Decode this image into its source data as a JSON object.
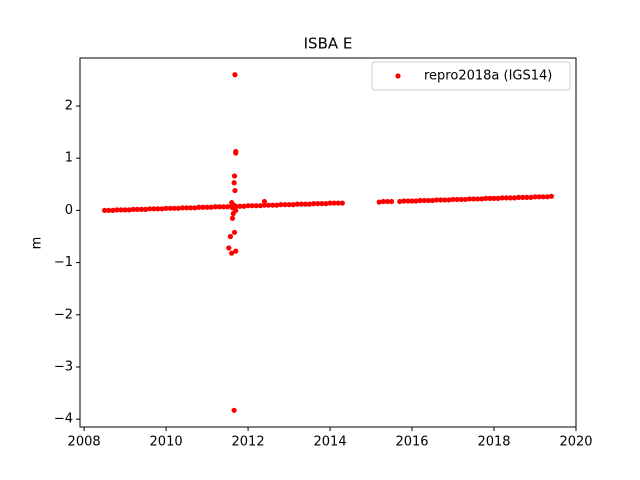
{
  "chart_data": {
    "type": "scatter",
    "title": "ISBA E",
    "y_label": "m",
    "xlim": [
      2007.9,
      2020.0
    ],
    "ylim": [
      -4.15,
      2.92
    ],
    "xticks": [
      2008,
      2010,
      2012,
      2014,
      2016,
      2018,
      2020
    ],
    "yticks": [
      {
        "value": -4,
        "label": "−4"
      },
      {
        "value": -3,
        "label": "−3"
      },
      {
        "value": -2,
        "label": "−2"
      },
      {
        "value": -1,
        "label": "−1"
      },
      0,
      1,
      2
    ],
    "grid": false,
    "legend_position": "upper-right",
    "series": [
      {
        "name": "repro2018a (IGS14)",
        "color": "#ff0000",
        "x": [
          2008.5,
          2008.6,
          2008.7,
          2008.8,
          2008.9,
          2009.0,
          2009.1,
          2009.2,
          2009.3,
          2009.4,
          2009.5,
          2009.6,
          2009.7,
          2009.8,
          2009.9,
          2010.0,
          2010.1,
          2010.2,
          2010.3,
          2010.4,
          2010.5,
          2010.6,
          2010.7,
          2010.8,
          2010.9,
          2011.0,
          2011.1,
          2011.2,
          2011.3,
          2011.4,
          2011.5,
          2011.6,
          2011.7,
          2011.8,
          2011.9,
          2012.0,
          2012.1,
          2012.2,
          2012.3,
          2012.4,
          2012.5,
          2012.6,
          2012.7,
          2012.8,
          2012.9,
          2013.0,
          2013.1,
          2013.2,
          2013.3,
          2013.4,
          2013.5,
          2013.6,
          2013.7,
          2013.8,
          2013.9,
          2014.0,
          2014.1,
          2014.2,
          2014.3,
          2015.2,
          2015.3,
          2015.4,
          2015.5,
          2015.7,
          2015.8,
          2015.9,
          2016.0,
          2016.1,
          2016.2,
          2016.3,
          2016.4,
          2016.5,
          2016.6,
          2016.7,
          2016.8,
          2016.9,
          2017.0,
          2017.1,
          2017.2,
          2017.3,
          2017.4,
          2017.5,
          2017.6,
          2017.7,
          2017.8,
          2017.9,
          2018.0,
          2018.1,
          2018.2,
          2018.3,
          2018.4,
          2018.5,
          2018.6,
          2018.7,
          2018.8,
          2018.9,
          2019.0,
          2019.1,
          2019.2,
          2019.3,
          2019.4,
          2011.68,
          2011.7,
          2011.7,
          2011.67,
          2011.66,
          2011.68,
          2011.6,
          2011.62,
          2011.64,
          2011.67,
          2011.57,
          2011.53,
          2011.6,
          2011.7,
          2011.66,
          2012.4,
          2011.65,
          2011.7,
          2011.62
        ],
        "values": [
          0,
          0,
          0,
          0.01,
          0.01,
          0.01,
          0.01,
          0.02,
          0.02,
          0.02,
          0.02,
          0.03,
          0.03,
          0.03,
          0.03,
          0.04,
          0.04,
          0.04,
          0.04,
          0.05,
          0.05,
          0.05,
          0.05,
          0.06,
          0.06,
          0.06,
          0.06,
          0.07,
          0.07,
          0.07,
          0.07,
          0.08,
          0.08,
          0.08,
          0.08,
          0.09,
          0.09,
          0.09,
          0.09,
          0.1,
          0.1,
          0.1,
          0.1,
          0.11,
          0.11,
          0.11,
          0.11,
          0.12,
          0.12,
          0.12,
          0.12,
          0.13,
          0.13,
          0.13,
          0.13,
          0.14,
          0.14,
          0.14,
          0.14,
          0.16,
          0.17,
          0.17,
          0.17,
          0.17,
          0.18,
          0.18,
          0.18,
          0.18,
          0.19,
          0.19,
          0.19,
          0.19,
          0.2,
          0.2,
          0.2,
          0.2,
          0.21,
          0.21,
          0.21,
          0.21,
          0.22,
          0.22,
          0.22,
          0.22,
          0.23,
          0.23,
          0.23,
          0.23,
          0.24,
          0.24,
          0.24,
          0.24,
          0.25,
          0.25,
          0.25,
          0.25,
          0.26,
          0.26,
          0.26,
          0.26,
          0.27,
          2.6,
          1.13,
          1.1,
          0.66,
          0.53,
          0.38,
          0.15,
          -0.15,
          -0.06,
          -0.42,
          -0.5,
          -0.72,
          -0.82,
          -0.78,
          -3.83,
          0.17,
          0.1,
          0.0,
          0.05
        ]
      }
    ]
  }
}
